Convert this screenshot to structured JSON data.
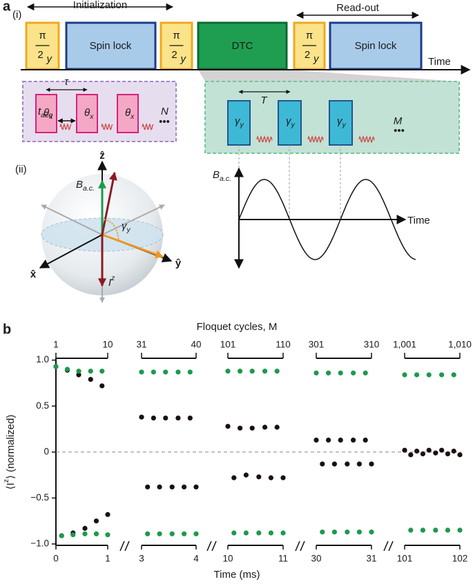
{
  "panel_a": {
    "panel_label": "a",
    "part_i": "(i)",
    "initialization": "Initialization",
    "readout": "Read-out",
    "time_axis": "Time",
    "half_pi_pulses": [
      {
        "numerator": "π",
        "denominator": "2",
        "subscript": "y"
      },
      {
        "numerator": "π",
        "denominator": "2",
        "subscript": "y"
      },
      {
        "numerator": "π",
        "denominator": "2",
        "subscript": "y"
      }
    ],
    "spin_lock": [
      "Spin lock",
      "Spin lock"
    ],
    "dtc": "DTC",
    "spin_lock_detail": {
      "tau": "τ",
      "t_acq": {
        "base": "t",
        "sub": "acq"
      },
      "pulses": [
        {
          "base": "θ",
          "sub": "x"
        },
        {
          "base": "θ",
          "sub": "x"
        },
        {
          "base": "θ",
          "sub": "x"
        }
      ],
      "repeat": "N",
      "ellipsis": "•••"
    },
    "dtc_detail": {
      "period": "T",
      "pulses": [
        {
          "base": "γ",
          "sub": "y"
        },
        {
          "base": "γ",
          "sub": "y"
        },
        {
          "base": "γ",
          "sub": "y"
        }
      ],
      "repeat": "M",
      "ellipsis": "•••"
    },
    "part_ii": "(ii)",
    "sphere": {
      "z": "ẑ",
      "x": "x̂",
      "y": "ŷ",
      "field": {
        "base": "B",
        "sub": "a.c."
      },
      "angle": {
        "base": "γ",
        "sub": "y"
      },
      "spin": {
        "base": "I",
        "sup": "z"
      }
    },
    "field_plot": {
      "ylabel": {
        "base": "B",
        "sub": "a.c."
      },
      "xlabel": "Time"
    }
  },
  "chart_data": {
    "type": "scatter",
    "panel_label": "b",
    "top_label": "Floquet cycles, M",
    "xlabel": "Time (ms)",
    "ylabel": {
      "pre": "⟨I",
      "sup": "z",
      "post": "⟩ (normalized)"
    },
    "ylim": [
      -1.015,
      1.02
    ],
    "yticks": [
      {
        "value": 1,
        "label": "1.0"
      },
      0.5,
      0,
      {
        "value": -0.5,
        "label": "−0.5"
      },
      {
        "value": -1,
        "label": "−1.0"
      }
    ],
    "zero_line": true,
    "segments": [
      {
        "xlim": [
          0,
          1
        ],
        "xticks": [
          0,
          1
        ],
        "x2lim": [
          1,
          10
        ],
        "x2ticks": [
          1,
          10
        ],
        "x": [
          0,
          0.11,
          0.22,
          0.33,
          0.44,
          0.56,
          0.67,
          0.78,
          0.89,
          1.0
        ],
        "series": [
          {
            "color": "#1a1010",
            "values": [
              0.93,
              -0.91,
              0.89,
              -0.88,
              0.84,
              -0.83,
              0.79,
              -0.75,
              0.72,
              -0.68
            ]
          },
          {
            "color": "#1c9a4c",
            "values": [
              0.93,
              -0.91,
              0.9,
              -0.9,
              0.88,
              -0.89,
              0.88,
              -0.89,
              0.88,
              -0.9
            ]
          }
        ]
      },
      {
        "xlim": [
          3,
          4
        ],
        "xticks": [
          3,
          4
        ],
        "x2lim": [
          31,
          40
        ],
        "x2ticks": [
          31,
          40
        ],
        "x": [
          3,
          3.11,
          3.22,
          3.33,
          3.44,
          3.56,
          3.67,
          3.78,
          3.89,
          4.0
        ],
        "series": [
          {
            "color": "#1a1010",
            "values": [
              0.38,
              -0.38,
              0.37,
              -0.38,
              0.37,
              -0.38,
              0.37,
              -0.38,
              0.37,
              -0.38
            ]
          },
          {
            "color": "#1c9a4c",
            "values": [
              0.87,
              -0.89,
              0.87,
              -0.89,
              0.87,
              -0.89,
              0.87,
              -0.89,
              0.87,
              -0.89
            ]
          }
        ]
      },
      {
        "xlim": [
          10,
          11
        ],
        "xticks": [
          10,
          11
        ],
        "x2lim": [
          101,
          110
        ],
        "x2ticks": [
          101,
          110
        ],
        "x": [
          10,
          10.11,
          10.22,
          10.33,
          10.44,
          10.56,
          10.67,
          10.78,
          10.89,
          11.0
        ],
        "series": [
          {
            "color": "#1a1010",
            "values": [
              0.28,
              -0.28,
              0.26,
              -0.25,
              0.26,
              -0.27,
              0.27,
              -0.28,
              0.27,
              -0.28
            ]
          },
          {
            "color": "#1c9a4c",
            "values": [
              0.88,
              -0.88,
              0.88,
              -0.88,
              0.88,
              -0.88,
              0.88,
              -0.88,
              0.88,
              -0.88
            ]
          }
        ]
      },
      {
        "xlim": [
          30,
          31
        ],
        "xticks": [
          30,
          31
        ],
        "x2lim": [
          301,
          310
        ],
        "x2ticks": [
          301,
          310
        ],
        "x": [
          30,
          30.11,
          30.22,
          30.33,
          30.44,
          30.56,
          30.67,
          30.78,
          30.89,
          31.0
        ],
        "series": [
          {
            "color": "#1a1010",
            "values": [
              0.13,
              -0.13,
              0.13,
              -0.13,
              0.13,
              -0.13,
              0.13,
              -0.13,
              0.13,
              -0.13
            ]
          },
          {
            "color": "#1c9a4c",
            "values": [
              0.86,
              -0.87,
              0.86,
              -0.87,
              0.86,
              -0.87,
              0.86,
              -0.87,
              0.86,
              -0.87
            ]
          }
        ]
      },
      {
        "xlim": [
          101,
          102
        ],
        "xticks": [
          101,
          102
        ],
        "x2lim": [
          1001,
          1010
        ],
        "x2ticks": [
          {
            "value": 1001,
            "label": "1,001"
          },
          {
            "value": 1010,
            "label": "1,010"
          }
        ],
        "x": [
          101,
          101.11,
          101.22,
          101.33,
          101.44,
          101.56,
          101.67,
          101.78,
          101.89,
          102.0
        ],
        "series": [
          {
            "color": "#1a1010",
            "values": [
              0.02,
              -0.03,
              0.01,
              -0.02,
              0.02,
              -0.01,
              0.02,
              -0.02,
              0.01,
              -0.03
            ]
          },
          {
            "color": "#1c9a4c",
            "values": [
              0.84,
              -0.85,
              0.84,
              -0.85,
              0.84,
              -0.85,
              0.84,
              -0.85,
              0.84,
              -0.85
            ]
          }
        ]
      }
    ]
  }
}
